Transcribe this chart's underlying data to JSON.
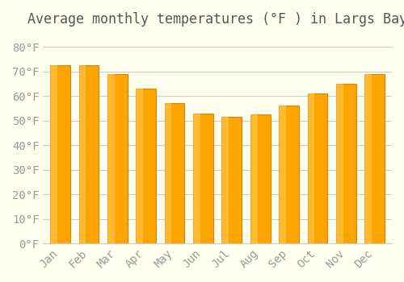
{
  "title": "Average monthly temperatures (°F ) in Largs Bay",
  "months": [
    "Jan",
    "Feb",
    "Mar",
    "Apr",
    "May",
    "Jun",
    "Jul",
    "Aug",
    "Sep",
    "Oct",
    "Nov",
    "Dec"
  ],
  "values": [
    72.5,
    72.5,
    69,
    63,
    57,
    53,
    51.5,
    52.5,
    56,
    61,
    65,
    69
  ],
  "bar_color": "#FFA500",
  "bar_edge_color": "#E08000",
  "background_color": "#FFFFF0",
  "grid_color": "#cccccc",
  "ylim": [
    0,
    85
  ],
  "yticks": [
    0,
    10,
    20,
    30,
    40,
    50,
    60,
    70,
    80
  ],
  "title_fontsize": 12,
  "tick_fontsize": 10,
  "figsize": [
    5.0,
    3.5
  ],
  "dpi": 100
}
